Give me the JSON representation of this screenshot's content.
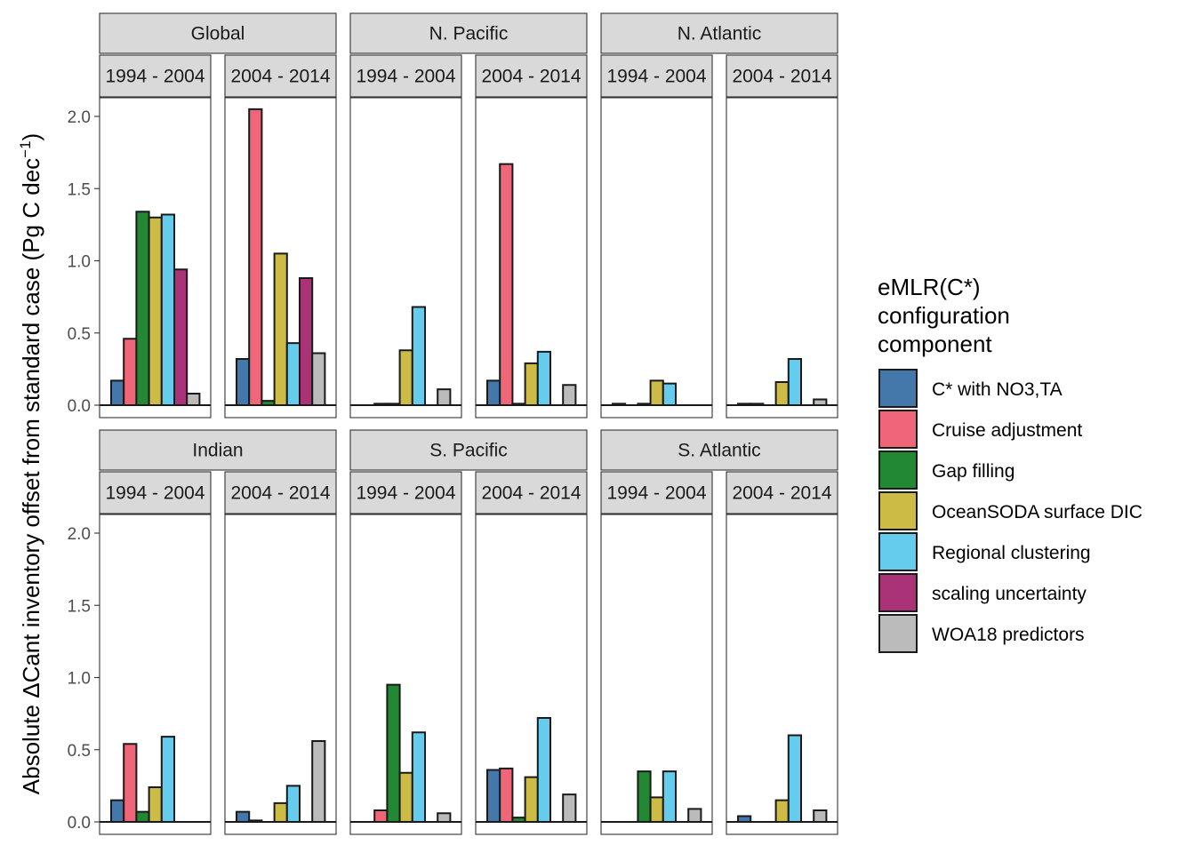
{
  "chart_data": {
    "type": "bar",
    "ylabel_prefix": "Absolute ΔCant inventory offset from standard case (Pg C dec",
    "ylabel_sup": "−1",
    "ylabel_suffix": ")",
    "ylim": [
      0,
      2.0
    ],
    "yticks": [
      "0.0",
      "0.5",
      "1.0",
      "1.5",
      "2.0"
    ],
    "ytick_values": [
      0,
      0.5,
      1.0,
      1.5,
      2.0
    ],
    "legend": {
      "title": [
        "eMLR(C*)",
        "configuration",
        "component"
      ],
      "position": "right"
    },
    "series": [
      {
        "name": "C* with NO3,TA",
        "color": "#4477aa"
      },
      {
        "name": "Cruise adjustment",
        "color": "#ee6677"
      },
      {
        "name": "Gap filling",
        "color": "#228833"
      },
      {
        "name": "OceanSODA surface DIC",
        "color": "#ccbb44"
      },
      {
        "name": "Regional clustering",
        "color": "#66ccee"
      },
      {
        "name": "scaling uncertainty",
        "color": "#aa3377"
      },
      {
        "name": "WOA18 predictors",
        "color": "#bbbbbb"
      }
    ],
    "periods": [
      "1994 - 2004",
      "2004 - 2014"
    ],
    "regions": [
      {
        "name": "Global",
        "values": [
          [
            0.17,
            0.46,
            1.34,
            1.3,
            1.32,
            0.94,
            0.08
          ],
          [
            0.32,
            2.05,
            0.03,
            1.05,
            0.43,
            0.88,
            0.36
          ]
        ]
      },
      {
        "name": "N. Pacific",
        "values": [
          [
            0.0,
            0.01,
            0.01,
            0.38,
            0.68,
            0.0,
            0.11
          ],
          [
            0.17,
            1.67,
            0.01,
            0.29,
            0.37,
            0.0,
            0.14
          ]
        ]
      },
      {
        "name": "N. Atlantic",
        "values": [
          [
            0.01,
            0.0,
            0.01,
            0.17,
            0.15,
            0.0,
            0.0
          ],
          [
            0.01,
            0.01,
            0.0,
            0.16,
            0.32,
            0.0,
            0.04
          ]
        ]
      },
      {
        "name": "Indian",
        "values": [
          [
            0.15,
            0.54,
            0.07,
            0.24,
            0.59,
            0.0,
            0.0
          ],
          [
            0.07,
            0.01,
            0.0,
            0.13,
            0.25,
            0.0,
            0.56
          ]
        ]
      },
      {
        "name": "S. Pacific",
        "values": [
          [
            0.0,
            0.08,
            0.95,
            0.34,
            0.62,
            0.0,
            0.06
          ],
          [
            0.36,
            0.37,
            0.03,
            0.31,
            0.72,
            0.0,
            0.19
          ]
        ]
      },
      {
        "name": "S. Atlantic",
        "values": [
          [
            0.0,
            0.0,
            0.35,
            0.17,
            0.35,
            0.0,
            0.09
          ],
          [
            0.04,
            0.0,
            0.0,
            0.15,
            0.6,
            0.0,
            0.08
          ]
        ]
      }
    ]
  }
}
